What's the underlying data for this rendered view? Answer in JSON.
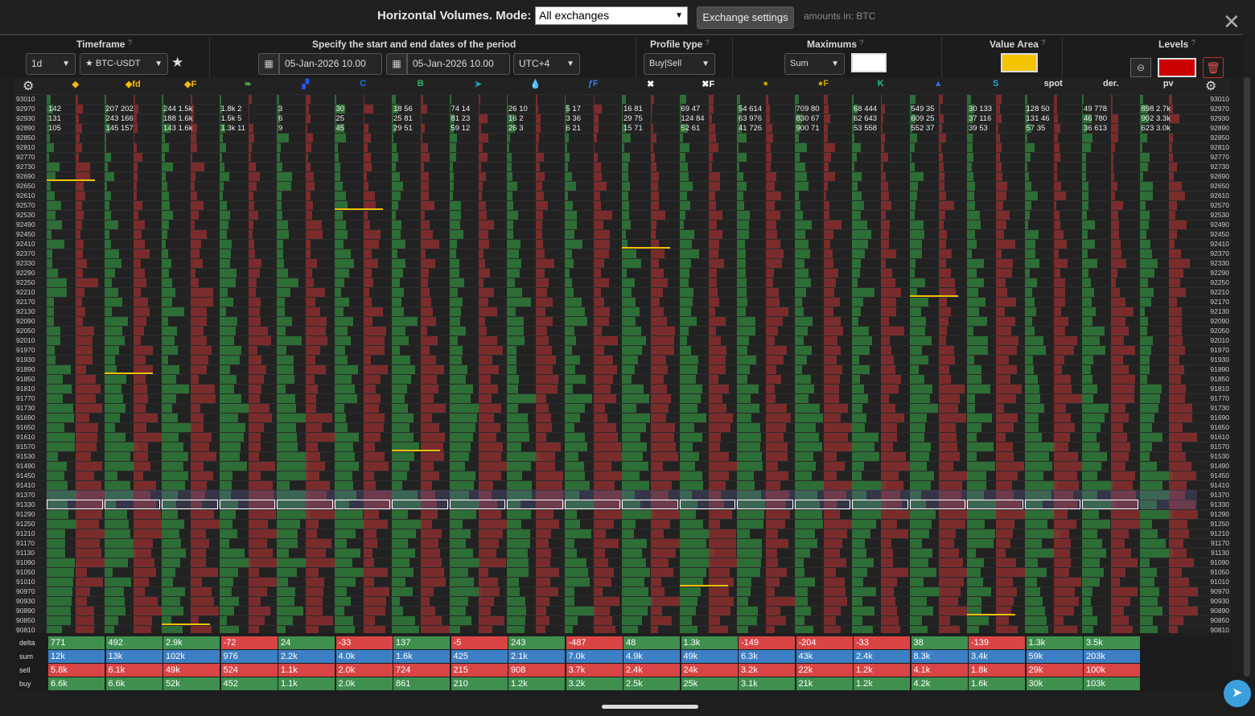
{
  "header": {
    "title": "Horizontal Volumes. Mode:",
    "mode_value": "All exchanges",
    "exchange_settings_label": "Exchange settings",
    "amounts_note": "amounts in: BTC"
  },
  "controls": {
    "timeframe_label": "Timeframe",
    "timeframe_value": "1d",
    "symbol_value": "★ BTC-USDT",
    "period_label": "Specify the start and end dates of the period",
    "start_date": "05-Jan-2026 10.00",
    "end_date": "05-Jan-2026 10.00",
    "timezone": "UTC+4",
    "profile_type_label": "Profile type",
    "profile_type_value": "Buy|Sell",
    "maximums_label": "Maximums",
    "maximums_value": "Sum",
    "value_area_label": "Value Area",
    "levels_label": "Levels",
    "colors": {
      "maximums": "#ffffff",
      "value_area": "#f5c400",
      "levels": "#cc0000"
    }
  },
  "columns": [
    {
      "icon": "binance-icon",
      "glyph": "◆",
      "color": "#f0b90b"
    },
    {
      "icon": "binance-fd-icon",
      "glyph": "◆fd",
      "color": "#f0b90b"
    },
    {
      "icon": "binance-futures-icon",
      "glyph": "◆F",
      "color": "#f0b90b"
    },
    {
      "icon": "leaf-icon",
      "glyph": "❧",
      "color": "#4caf50"
    },
    {
      "icon": "huobi-icon",
      "glyph": "▞",
      "color": "#2255ee"
    },
    {
      "icon": "coinbase-icon",
      "glyph": "C",
      "color": "#1a6df0"
    },
    {
      "icon": "bybit-icon",
      "glyph": "B",
      "color": "#2db35a"
    },
    {
      "icon": "rocket-icon",
      "glyph": "➤",
      "color": "#27a0c0"
    },
    {
      "icon": "drop-icon",
      "glyph": "💧",
      "color": "#3a7de0"
    },
    {
      "icon": "futures-f-icon",
      "glyph": "ƒF",
      "color": "#3a7de0"
    },
    {
      "icon": "okx-icon",
      "glyph": "✖",
      "color": "#ffffff"
    },
    {
      "icon": "okx-futures-icon",
      "glyph": "✖F",
      "color": "#ffffff"
    },
    {
      "icon": "bitget-icon",
      "glyph": "●",
      "color": "#c8a000"
    },
    {
      "icon": "bitget-futures-icon",
      "glyph": "●F",
      "color": "#c8a000"
    },
    {
      "icon": "kucoin-icon",
      "glyph": "K",
      "color": "#22c0a0"
    },
    {
      "icon": "mexc-icon",
      "glyph": "▲",
      "color": "#2a6fe0"
    },
    {
      "icon": "gate-icon",
      "glyph": "S",
      "color": "#1ea8d0"
    },
    {
      "icon": "spot-label",
      "glyph": "spot",
      "color": "#dddddd"
    },
    {
      "icon": "der-label",
      "glyph": "der.",
      "color": "#dddddd"
    },
    {
      "icon": "pv-label",
      "glyph": "pv",
      "color": "#dddddd"
    }
  ],
  "prices": [
    "93010",
    "92970",
    "92930",
    "92890",
    "92850",
    "92810",
    "92770",
    "92730",
    "92690",
    "92650",
    "92610",
    "92570",
    "92530",
    "92490",
    "92450",
    "92410",
    "92370",
    "92330",
    "92290",
    "92250",
    "92210",
    "92170",
    "92130",
    "92090",
    "92050",
    "92010",
    "91970",
    "91930",
    "91890",
    "91850",
    "91810",
    "91770",
    "91730",
    "91690",
    "91650",
    "91610",
    "91570",
    "91530",
    "91490",
    "91450",
    "91410",
    "91370",
    "91330",
    "91290",
    "91250",
    "91210",
    "91170",
    "91130",
    "91090",
    "91050",
    "91010",
    "90970",
    "90930",
    "90890",
    "90850",
    "90810"
  ],
  "sample_rows": [
    [
      "142",
      "207 202",
      "244 1.5k",
      "1.8k 2",
      "3",
      "30",
      "18 56",
      "74 14",
      "26 10",
      "5 17",
      "16 81",
      "69 47",
      "54 614",
      "709 80",
      "68 444",
      "549 35",
      "30 133",
      "128 50",
      "49 778",
      "898 2.7k"
    ],
    [
      "131",
      "243 166",
      "188 1.6k",
      "1.5k 5",
      "6",
      "25",
      "25 81",
      "81 23",
      "16 2",
      "3 36",
      "29 75",
      "124 84",
      "63 976",
      "830 67",
      "62 643",
      "609 25",
      "37 116",
      "131 46",
      "46 780",
      "902 3.3k"
    ],
    [
      "105",
      "145 157",
      "143 1.6k",
      "1.3k 11",
      "9",
      "45",
      "29 51",
      "59 12",
      "26 3",
      "6 21",
      "15 71",
      "52 61",
      "41 726",
      "900 71",
      "53 558",
      "552 37",
      "39 53",
      "57 35",
      "36 613",
      "623 3.0k"
    ]
  ],
  "summary": {
    "delta": [
      "771",
      "492",
      "2.9k",
      "-72",
      "24",
      "-33",
      "137",
      "-5",
      "243",
      "-487",
      "48",
      "1.3k",
      "-149",
      "-204",
      "-33",
      "38",
      "-139",
      "1.3k",
      "3.5k"
    ],
    "sum": [
      "12k",
      "13k",
      "102k",
      "976",
      "2.2k",
      "4.0k",
      "1.6k",
      "425",
      "2.1k",
      "7.0k",
      "4.9k",
      "49k",
      "6.3k",
      "43k",
      "2.4k",
      "8.3k",
      "3.4k",
      "59k",
      "203k"
    ],
    "sell": [
      "5.8k",
      "6.1k",
      "49k",
      "524",
      "1.1k",
      "2.0k",
      "724",
      "215",
      "908",
      "3.7k",
      "2.4k",
      "24k",
      "3.2k",
      "22k",
      "1.2k",
      "4.1k",
      "1.8k",
      "29k",
      "100k"
    ],
    "buy": [
      "6.6k",
      "6.6k",
      "52k",
      "452",
      "1.1k",
      "2.0k",
      "861",
      "210",
      "1.2k",
      "3.2k",
      "2.5k",
      "25k",
      "3.1k",
      "21k",
      "1.2k",
      "4.2k",
      "1.6k",
      "30k",
      "103k"
    ],
    "labels": {
      "delta": "delta",
      "sum": "sum",
      "sell": "sell",
      "buy": "buy"
    }
  }
}
